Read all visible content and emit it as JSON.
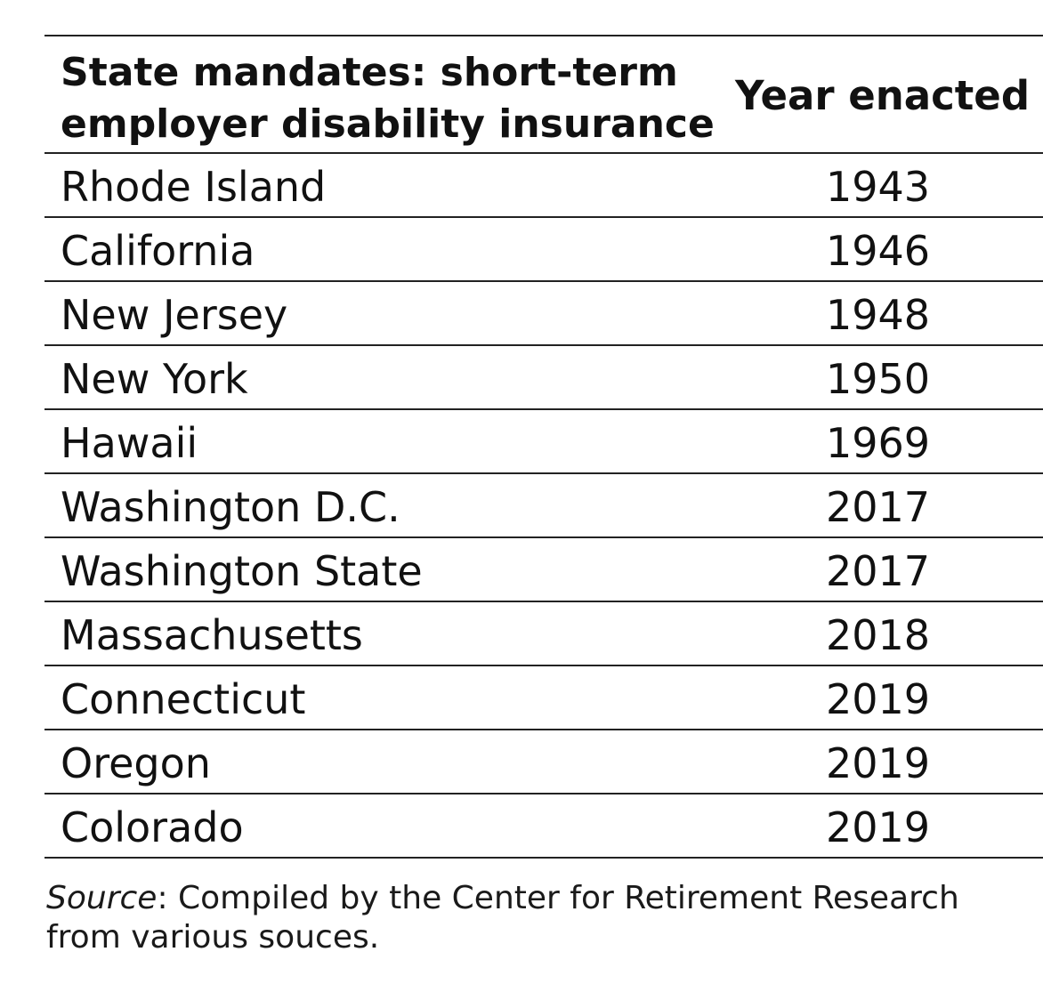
{
  "chart_data": {
    "type": "table",
    "columns": [
      "State mandates: short-term\nemployer disability insurance",
      "Year enacted"
    ],
    "rows": [
      {
        "state": "Rhode Island",
        "year": "1943"
      },
      {
        "state": "California",
        "year": "1946"
      },
      {
        "state": "New Jersey",
        "year": "1948"
      },
      {
        "state": "New York",
        "year": "1950"
      },
      {
        "state": "Hawaii",
        "year": "1969"
      },
      {
        "state": "Washington D.C.",
        "year": "2017"
      },
      {
        "state": "Washington State",
        "year": "2017"
      },
      {
        "state": "Massachusetts",
        "year": "2018"
      },
      {
        "state": "Connecticut",
        "year": "2019"
      },
      {
        "state": "Oregon",
        "year": "2019"
      },
      {
        "state": "Colorado",
        "year": "2019"
      }
    ]
  },
  "source": {
    "label": "Source",
    "text": ": Compiled by the Center for Retirement Research from various souces."
  },
  "colors": {
    "text": "#111111",
    "rule": "#222222",
    "background": "#ffffff"
  }
}
